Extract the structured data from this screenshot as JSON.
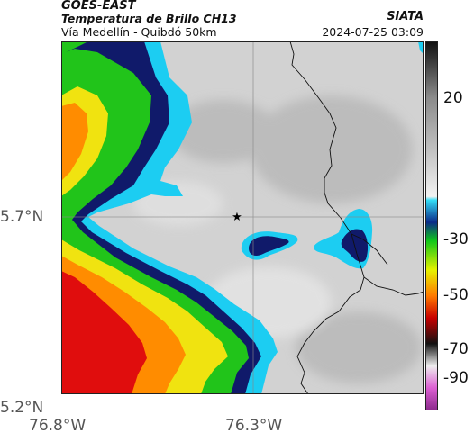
{
  "header": {
    "satellite": "GOES-EAST",
    "product": "Temperatura de Brillo CH13",
    "route": "Vía Medellín - Quibdó 50km",
    "organization": "SIATA",
    "datetime": "2024-07-25 03:09"
  },
  "axes": {
    "y_ticks": [
      "5.7°N",
      "5.2°N"
    ],
    "x_ticks": [
      "76.8°W",
      "76.3°W"
    ]
  },
  "colorbar": {
    "tick_labels": [
      "20",
      "-30",
      "-50",
      "-70",
      "-90"
    ],
    "stops": [
      {
        "t": 0.0,
        "color": "#111111"
      },
      {
        "t": 0.15,
        "color": "#8a8a8a"
      },
      {
        "t": 0.42,
        "color": "#f2f2f2"
      },
      {
        "t": 0.43,
        "color": "#33ddf6"
      },
      {
        "t": 0.49,
        "color": "#0a2a8a"
      },
      {
        "t": 0.54,
        "color": "#0ec61a"
      },
      {
        "t": 0.62,
        "color": "#e6f200"
      },
      {
        "t": 0.69,
        "color": "#ff7a00"
      },
      {
        "t": 0.75,
        "color": "#c80000"
      },
      {
        "t": 0.82,
        "color": "#111111"
      },
      {
        "t": 0.88,
        "color": "#eeeeee"
      },
      {
        "t": 0.94,
        "color": "#dc5fd3"
      },
      {
        "t": 1.0,
        "color": "#8c2a8c"
      }
    ]
  },
  "map": {
    "marker_symbol": "★",
    "palette": {
      "cloud_gray": "#d2d2d2",
      "cloud_dark": "#b3b3b3",
      "cyan": "#1ccdf2",
      "navy": "#101a6a",
      "green": "#21c41a",
      "yellow": "#f0e310",
      "orange": "#ff8c00",
      "red": "#e00d0d",
      "border": "#111111",
      "gridline": "#888888"
    }
  }
}
